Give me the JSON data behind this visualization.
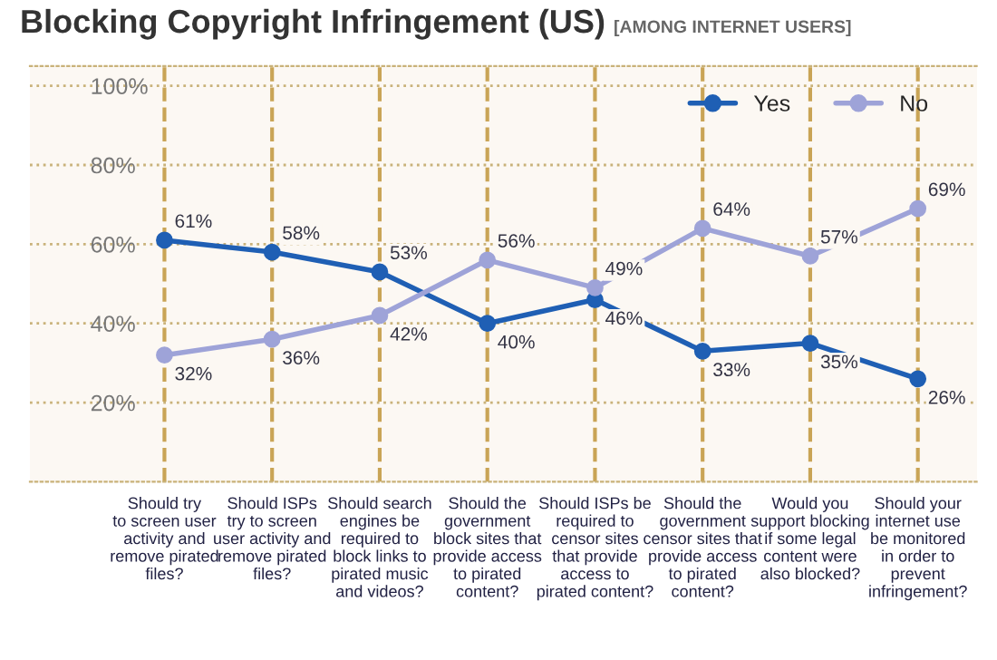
{
  "chart_data": {
    "type": "line",
    "title": "Blocking Copyright Infringement (US)",
    "subtitle": "[AMONG INTERNET USERS]",
    "categories": [
      "Should try\nto screen user\nactivity and\nremove pirated\nfiles?",
      "Should ISPs\ntry to screen\nuser activity and\nremove pirated\nfiles?",
      "Should search\nengines be\nrequired to\nblock links to\npirated music\nand videos?",
      "Should the\ngovernment\nblock sites that\nprovide access\nto pirated\ncontent?",
      "Should ISPs be\nrequired to\ncensor sites\nthat provide\naccess to\npirated content?",
      "Should the\ngovernment\ncensor sites that\nprovide access\nto pirated\ncontent?",
      "Would you\nsupport blocking\nif some legal\ncontent were\nalso blocked?",
      "Should your\ninternet use\nbe monitored\nin order to\nprevent\ninfringement?"
    ],
    "series": [
      {
        "name": "Yes",
        "color": "#1f5fb4",
        "values": [
          61,
          58,
          53,
          40,
          46,
          33,
          35,
          26
        ],
        "value_labels": [
          "61%",
          "58%",
          "53%",
          "40%",
          "46%",
          "33%",
          "35%",
          "26%"
        ]
      },
      {
        "name": "No",
        "color": "#9ea3d8",
        "values": [
          32,
          36,
          42,
          56,
          49,
          64,
          57,
          69
        ],
        "value_labels": [
          "32%",
          "36%",
          "42%",
          "56%",
          "49%",
          "64%",
          "57%",
          "69%"
        ]
      }
    ],
    "ylim": [
      0,
      105
    ],
    "yticks": [
      {
        "value": 20,
        "label": "20%"
      },
      {
        "value": 40,
        "label": "40%"
      },
      {
        "value": 60,
        "label": "60%"
      },
      {
        "value": 80,
        "label": "80%"
      },
      {
        "value": 100,
        "label": "100%"
      }
    ],
    "grid": true,
    "legend": "top right",
    "marker": "circle",
    "line_style": "solid"
  }
}
